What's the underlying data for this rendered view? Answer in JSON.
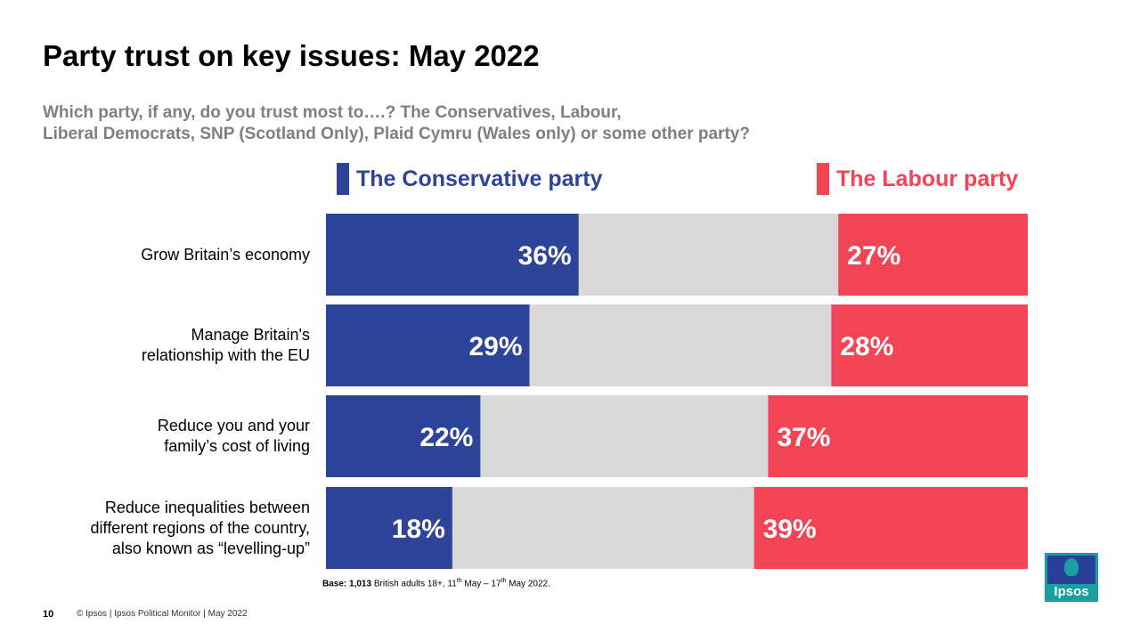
{
  "header": {
    "title": "Party trust on key issues: May 2022",
    "subtitle_line1": "Which party, if any, do you trust most to….? The Conservatives, Labour,",
    "subtitle_line2": "Liberal Democrats, SNP (Scotland Only), Plaid Cymru (Wales only) or some other party?"
  },
  "legend": {
    "conservative": "The Conservative party",
    "labour": "The Labour party"
  },
  "colors": {
    "conservative": "#2e4498",
    "labour": "#f24455",
    "other": "#d9d9d9",
    "subtitle": "#7f7f7f"
  },
  "rows": [
    {
      "label_lines": [
        "Grow Britain’s economy"
      ]
    },
    {
      "label_lines": [
        "Manage Britain's",
        "relationship with the EU"
      ]
    },
    {
      "label_lines": [
        "Reduce you and your",
        "family’s cost of living"
      ]
    },
    {
      "label_lines": [
        "Reduce inequalities between",
        "different regions of the country,",
        "also known as “levelling-up”"
      ]
    }
  ],
  "chart_data": {
    "type": "bar",
    "orientation": "horizontal-stacked-diverging",
    "categories": [
      "Grow Britain’s economy",
      "Manage Britain's relationship with the EU",
      "Reduce you and your family’s cost of living",
      "Reduce inequalities between different regions of the country, also known as “levelling-up”"
    ],
    "series": [
      {
        "name": "The Conservative party",
        "values": [
          36,
          29,
          22,
          18
        ],
        "labels": [
          "36%",
          "29%",
          "22%",
          "18%"
        ]
      },
      {
        "name": "The Labour party",
        "values": [
          27,
          28,
          37,
          39
        ],
        "labels": [
          "27%",
          "28%",
          "37%",
          "39%"
        ]
      }
    ],
    "xlim": [
      0,
      100
    ],
    "grid": false,
    "legend_position": "top"
  },
  "footer": {
    "base_bold": "Base:",
    "base_count": "1,013",
    "base_text": " British adults 18+, 11",
    "base_sup1": "th",
    "base_mid": " May –  17",
    "base_sup2": "th",
    "base_end": " May 2022.",
    "page_number": "10",
    "copyright": "© Ipsos | Ipsos  Political Monitor | May 2022"
  },
  "logo": {
    "text": "Ipsos"
  }
}
